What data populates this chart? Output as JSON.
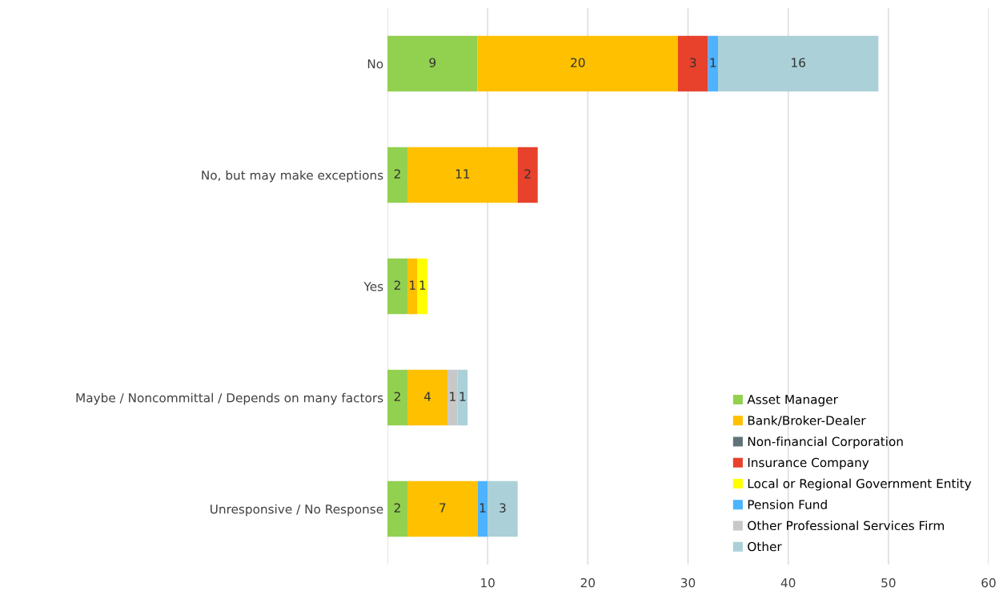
{
  "chart_data": {
    "type": "bar",
    "orientation": "horizontal",
    "stacked": true,
    "categories": [
      "No",
      "No, but may make exceptions",
      "Yes",
      "Maybe / Noncommittal / Depends on many factors",
      "Unresponsive / No Response"
    ],
    "series": [
      {
        "name": "Asset Manager",
        "color": "#92d050",
        "values": [
          9,
          2,
          2,
          2,
          2
        ]
      },
      {
        "name": "Bank/Broker-Dealer",
        "color": "#ffc000",
        "values": [
          20,
          11,
          1,
          4,
          7
        ]
      },
      {
        "name": "Non-financial Corporation",
        "color": "#5f7278",
        "values": [
          null,
          null,
          null,
          null,
          null
        ]
      },
      {
        "name": "Insurance Company",
        "color": "#e8412c",
        "values": [
          3,
          2,
          null,
          null,
          null
        ]
      },
      {
        "name": "Local or Regional Government Entity",
        "color": "#ffff00",
        "values": [
          null,
          null,
          1,
          null,
          null
        ]
      },
      {
        "name": "Pension Fund",
        "color": "#4db3ff",
        "values": [
          1,
          null,
          null,
          null,
          1
        ]
      },
      {
        "name": "Other Professional Services Firm",
        "color": "#c8c8c8",
        "values": [
          null,
          null,
          null,
          1,
          null
        ]
      },
      {
        "name": "Other",
        "color": "#abd0d8",
        "values": [
          16,
          null,
          null,
          1,
          3
        ]
      }
    ],
    "xlim": [
      0,
      60
    ],
    "xticks": [
      {
        "value": 0,
        "label": null
      },
      10,
      20,
      30,
      40,
      50,
      60
    ],
    "grid": "x",
    "legend": "bottom right",
    "data_labels": true
  }
}
